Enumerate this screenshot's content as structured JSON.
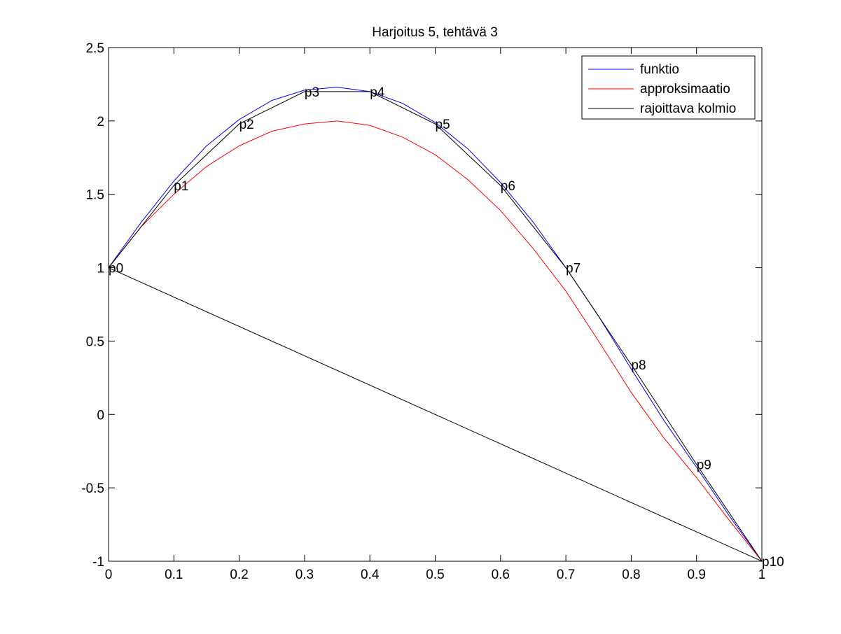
{
  "chart_data": {
    "type": "line",
    "title": "Harjoitus 5, tehtävä 3",
    "xlabel": "",
    "ylabel": "",
    "xlim": [
      0,
      1
    ],
    "ylim": [
      -1,
      2.5
    ],
    "grid": false,
    "legend_position": "top-right",
    "xticks": [
      0,
      0.1,
      0.2,
      0.3,
      0.4,
      0.5,
      0.6,
      0.7,
      0.8,
      0.9,
      1
    ],
    "xtick_labels": [
      "0",
      "0.1",
      "0.2",
      "0.3",
      "0.4",
      "0.5",
      "0.6",
      "0.7",
      "0.8",
      "0.9",
      "1"
    ],
    "yticks": [
      -1,
      -0.5,
      0,
      0.5,
      1,
      1.5,
      2,
      2.5
    ],
    "ytick_labels": [
      "-1",
      "-0.5",
      "0",
      "0.5",
      "1",
      "1.5",
      "2",
      "2.5"
    ],
    "series": [
      {
        "name": "funktio",
        "color": "#0000ff",
        "x": [
          0,
          0.05,
          0.1,
          0.15,
          0.2,
          0.25,
          0.3,
          0.35,
          0.4,
          0.45,
          0.5,
          0.55,
          0.6,
          0.65,
          0.7,
          0.75,
          0.8,
          0.85,
          0.9,
          0.95,
          1
        ],
        "y": [
          1,
          1.31,
          1.59,
          1.83,
          2.01,
          2.14,
          2.21,
          2.23,
          2.2,
          2.12,
          1.99,
          1.81,
          1.58,
          1.31,
          1.0,
          0.67,
          0.31,
          -0.04,
          -0.36,
          -0.69,
          -1
        ]
      },
      {
        "name": "approksimaatio",
        "color": "#ff0000",
        "x": [
          0,
          0.05,
          0.1,
          0.15,
          0.2,
          0.25,
          0.3,
          0.35,
          0.4,
          0.45,
          0.5,
          0.55,
          0.6,
          0.65,
          0.7,
          0.75,
          0.8,
          0.85,
          0.9,
          0.95,
          1
        ],
        "y": [
          1,
          1.28,
          1.5,
          1.69,
          1.83,
          1.93,
          1.98,
          2.0,
          1.97,
          1.89,
          1.77,
          1.6,
          1.39,
          1.13,
          0.84,
          0.5,
          0.15,
          -0.16,
          -0.43,
          -0.72,
          -1
        ]
      },
      {
        "name": "rajoittava kolmio",
        "color": "#000000",
        "x": [
          0,
          0.1,
          0.2,
          0.3,
          0.4,
          0.5,
          0.6,
          0.7,
          0.8,
          0.9,
          1,
          0
        ],
        "y": [
          1,
          1.56,
          1.98,
          2.2,
          2.2,
          1.98,
          1.56,
          1.0,
          0.34,
          -0.34,
          -1,
          1
        ]
      }
    ],
    "point_labels": [
      {
        "text": "p0",
        "x": 0,
        "y": 1
      },
      {
        "text": "p1",
        "x": 0.1,
        "y": 1.56
      },
      {
        "text": "p2",
        "x": 0.2,
        "y": 1.98
      },
      {
        "text": "p3",
        "x": 0.3,
        "y": 2.2
      },
      {
        "text": "p4",
        "x": 0.4,
        "y": 2.2
      },
      {
        "text": "p5",
        "x": 0.5,
        "y": 1.98
      },
      {
        "text": "p6",
        "x": 0.6,
        "y": 1.56
      },
      {
        "text": "p7",
        "x": 0.7,
        "y": 1.0
      },
      {
        "text": "p8",
        "x": 0.8,
        "y": 0.34
      },
      {
        "text": "p9",
        "x": 0.9,
        "y": -0.34
      },
      {
        "text": "p10",
        "x": 1,
        "y": -1
      }
    ]
  }
}
